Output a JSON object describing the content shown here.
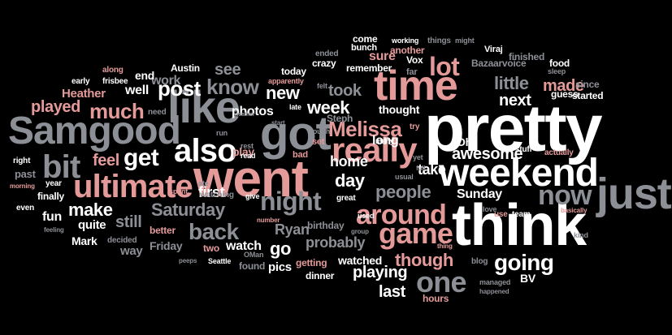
{
  "palette": {
    "white": "#ffffff",
    "pink": "#e59a9a",
    "gray": "#8c8f95"
  },
  "words": [
    {
      "text": "pretty",
      "color": "white"
    },
    {
      "text": "think",
      "color": "white"
    },
    {
      "text": "weekend",
      "color": "white"
    },
    {
      "text": "went",
      "color": "pink"
    },
    {
      "text": "time",
      "color": "pink"
    },
    {
      "text": "got",
      "color": "gray"
    },
    {
      "text": "like",
      "color": "gray"
    },
    {
      "text": "Samgood",
      "color": "gray"
    },
    {
      "text": "just",
      "color": "gray"
    },
    {
      "text": "also",
      "color": "white"
    },
    {
      "text": "really",
      "color": "pink"
    },
    {
      "text": "ultimate",
      "color": "pink"
    },
    {
      "text": "bit",
      "color": "gray"
    },
    {
      "text": "lot",
      "color": "pink"
    },
    {
      "text": "now",
      "color": "gray"
    },
    {
      "text": "around",
      "color": "pink"
    },
    {
      "text": "game",
      "color": "pink"
    },
    {
      "text": "night",
      "color": "gray"
    },
    {
      "text": "one",
      "color": "gray"
    },
    {
      "text": "Melissa",
      "color": "pink"
    },
    {
      "text": "post",
      "color": "white"
    },
    {
      "text": "much",
      "color": "pink"
    },
    {
      "text": "know",
      "color": "gray"
    },
    {
      "text": "get",
      "color": "white"
    },
    {
      "text": "back",
      "color": "gray"
    },
    {
      "text": "going",
      "color": "white"
    },
    {
      "text": "make",
      "color": "white"
    },
    {
      "text": "people",
      "color": "gray"
    },
    {
      "text": "little",
      "color": "gray"
    },
    {
      "text": "Saturday",
      "color": "gray"
    },
    {
      "text": "though",
      "color": "pink"
    },
    {
      "text": "week",
      "color": "white"
    },
    {
      "text": "day",
      "color": "white"
    },
    {
      "text": "new",
      "color": "white"
    },
    {
      "text": "playing",
      "color": "white"
    },
    {
      "text": "awesome",
      "color": "white"
    },
    {
      "text": "see",
      "color": "gray"
    },
    {
      "text": "made",
      "color": "pink"
    },
    {
      "text": "played",
      "color": "pink"
    },
    {
      "text": "feel",
      "color": "pink"
    },
    {
      "text": "still",
      "color": "gray"
    },
    {
      "text": "took",
      "color": "gray"
    },
    {
      "text": "probably",
      "color": "gray"
    },
    {
      "text": "go",
      "color": "white"
    },
    {
      "text": "last",
      "color": "white"
    },
    {
      "text": "next",
      "color": "white"
    },
    {
      "text": "home",
      "color": "white"
    },
    {
      "text": "take",
      "color": "white"
    },
    {
      "text": "Sunday",
      "color": "white"
    },
    {
      "text": "photos",
      "color": "white"
    },
    {
      "text": "first",
      "color": "white"
    },
    {
      "text": "fun",
      "color": "white"
    },
    {
      "text": "Ryan",
      "color": "gray"
    },
    {
      "text": "long",
      "color": "white"
    },
    {
      "text": "sure",
      "color": "pink"
    },
    {
      "text": "well",
      "color": "white"
    },
    {
      "text": "work",
      "color": "gray"
    },
    {
      "text": "watch",
      "color": "white"
    },
    {
      "text": "watched",
      "color": "white"
    },
    {
      "text": "pics",
      "color": "white"
    },
    {
      "text": "end",
      "color": "white"
    },
    {
      "text": "Heather",
      "color": "pink"
    },
    {
      "text": "thought",
      "color": "white"
    },
    {
      "text": "quite",
      "color": "white"
    },
    {
      "text": "Mark",
      "color": "white"
    },
    {
      "text": "way",
      "color": "gray"
    },
    {
      "text": "Friday",
      "color": "gray"
    },
    {
      "text": "play",
      "color": "pink"
    },
    {
      "text": "Oh",
      "color": "white"
    },
    {
      "text": "BV",
      "color": "white"
    },
    {
      "text": "finally",
      "color": "white"
    },
    {
      "text": "past",
      "color": "gray"
    },
    {
      "text": "getting",
      "color": "pink"
    },
    {
      "text": "birthday",
      "color": "gray"
    },
    {
      "text": "two",
      "color": "pink"
    },
    {
      "text": "better",
      "color": "pink"
    },
    {
      "text": "found",
      "color": "gray"
    },
    {
      "text": "dinner",
      "color": "white"
    },
    {
      "text": "hours",
      "color": "pink"
    },
    {
      "text": "today",
      "color": "white"
    },
    {
      "text": "crazy",
      "color": "white"
    },
    {
      "text": "remember",
      "color": "white"
    },
    {
      "text": "Austin",
      "color": "white"
    },
    {
      "text": "Steph",
      "color": "gray"
    },
    {
      "text": "Viraj",
      "color": "white"
    },
    {
      "text": "Bazaarvoice",
      "color": "gray"
    },
    {
      "text": "finished",
      "color": "gray"
    },
    {
      "text": "food",
      "color": "white"
    },
    {
      "text": "since",
      "color": "gray"
    },
    {
      "text": "guess",
      "color": "white"
    },
    {
      "text": "started",
      "color": "white"
    },
    {
      "text": "come",
      "color": "white"
    },
    {
      "text": "bunch",
      "color": "white"
    },
    {
      "text": "another",
      "color": "pink"
    },
    {
      "text": "Vox",
      "color": "white"
    },
    {
      "text": "far",
      "color": "gray"
    },
    {
      "text": "working",
      "color": "white"
    },
    {
      "text": "things",
      "color": "gray"
    },
    {
      "text": "might",
      "color": "gray"
    },
    {
      "text": "sleep",
      "color": "gray"
    },
    {
      "text": "ended",
      "color": "gray"
    },
    {
      "text": "along",
      "color": "pink"
    },
    {
      "text": "early",
      "color": "white"
    },
    {
      "text": "frisbee",
      "color": "white"
    },
    {
      "text": "apparently",
      "color": "pink"
    },
    {
      "text": "felt",
      "color": "gray"
    },
    {
      "text": "need",
      "color": "gray"
    },
    {
      "text": "late",
      "color": "white"
    },
    {
      "text": "start",
      "color": "gray"
    },
    {
      "text": "run",
      "color": "gray"
    },
    {
      "text": "rest",
      "color": "gray"
    },
    {
      "text": "read",
      "color": "white"
    },
    {
      "text": "bad",
      "color": "pink"
    },
    {
      "text": "set",
      "color": "pink"
    },
    {
      "text": "cough",
      "color": "gray"
    },
    {
      "text": "try",
      "color": "pink"
    },
    {
      "text": "many",
      "color": "white"
    },
    {
      "text": "yet",
      "color": "gray"
    },
    {
      "text": "full",
      "color": "gray"
    },
    {
      "text": "usual",
      "color": "gray"
    },
    {
      "text": "great",
      "color": "white"
    },
    {
      "text": "stuff",
      "color": "white"
    },
    {
      "text": "actually",
      "color": "pink"
    },
    {
      "text": "right",
      "color": "white"
    },
    {
      "text": "year",
      "color": "white"
    },
    {
      "text": "morning",
      "color": "pink"
    },
    {
      "text": "spent",
      "color": "pink"
    },
    {
      "text": "ate",
      "color": "gray"
    },
    {
      "text": "watching",
      "color": "gray"
    },
    {
      "text": "give",
      "color": "white"
    },
    {
      "text": "even",
      "color": "white"
    },
    {
      "text": "feeling",
      "color": "gray"
    },
    {
      "text": "decided",
      "color": "gray"
    },
    {
      "text": "number",
      "color": "pink"
    },
    {
      "text": "OMan",
      "color": "gray"
    },
    {
      "text": "peeps",
      "color": "gray"
    },
    {
      "text": "Seattle",
      "color": "white"
    },
    {
      "text": "used",
      "color": "white"
    },
    {
      "text": "group",
      "color": "gray"
    },
    {
      "text": "thing",
      "color": "pink"
    },
    {
      "text": "love",
      "color": "gray"
    },
    {
      "text": "use",
      "color": "pink"
    },
    {
      "text": "team",
      "color": "white"
    },
    {
      "text": "basically",
      "color": "pink"
    },
    {
      "text": "kind",
      "color": "gray"
    },
    {
      "text": "blog",
      "color": "gray"
    },
    {
      "text": "managed",
      "color": "gray"
    },
    {
      "text": "happened",
      "color": "gray"
    },
    {
      "text": "weather",
      "color": "gray"
    }
  ]
}
